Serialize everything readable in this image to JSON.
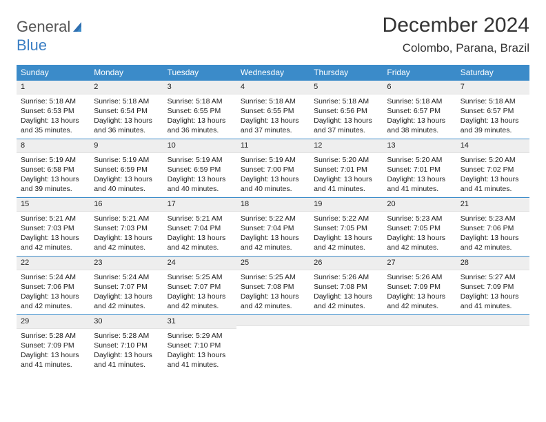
{
  "logo": {
    "top": "General",
    "bottom": "Blue"
  },
  "title": "December 2024",
  "location": "Colombo, Parana, Brazil",
  "weekdays": [
    "Sunday",
    "Monday",
    "Tuesday",
    "Wednesday",
    "Thursday",
    "Friday",
    "Saturday"
  ],
  "colors": {
    "header_bg": "#3b8bc9",
    "header_text": "#ffffff",
    "rule": "#3b8bc9",
    "daynum_bg": "#eeeeee",
    "logo_gray": "#555555",
    "logo_blue": "#3b7fc4",
    "text": "#222222",
    "background": "#ffffff"
  },
  "typography": {
    "title_fontsize": 30,
    "location_fontsize": 17,
    "weekday_fontsize": 12,
    "daynum_fontsize": 11,
    "body_fontsize": 10.5
  },
  "type": "calendar-table",
  "weeks": [
    [
      {
        "n": "1",
        "sunrise": "5:18 AM",
        "sunset": "6:53 PM",
        "daylight": "13 hours and 35 minutes."
      },
      {
        "n": "2",
        "sunrise": "5:18 AM",
        "sunset": "6:54 PM",
        "daylight": "13 hours and 36 minutes."
      },
      {
        "n": "3",
        "sunrise": "5:18 AM",
        "sunset": "6:55 PM",
        "daylight": "13 hours and 36 minutes."
      },
      {
        "n": "4",
        "sunrise": "5:18 AM",
        "sunset": "6:55 PM",
        "daylight": "13 hours and 37 minutes."
      },
      {
        "n": "5",
        "sunrise": "5:18 AM",
        "sunset": "6:56 PM",
        "daylight": "13 hours and 37 minutes."
      },
      {
        "n": "6",
        "sunrise": "5:18 AM",
        "sunset": "6:57 PM",
        "daylight": "13 hours and 38 minutes."
      },
      {
        "n": "7",
        "sunrise": "5:18 AM",
        "sunset": "6:57 PM",
        "daylight": "13 hours and 39 minutes."
      }
    ],
    [
      {
        "n": "8",
        "sunrise": "5:19 AM",
        "sunset": "6:58 PM",
        "daylight": "13 hours and 39 minutes."
      },
      {
        "n": "9",
        "sunrise": "5:19 AM",
        "sunset": "6:59 PM",
        "daylight": "13 hours and 40 minutes."
      },
      {
        "n": "10",
        "sunrise": "5:19 AM",
        "sunset": "6:59 PM",
        "daylight": "13 hours and 40 minutes."
      },
      {
        "n": "11",
        "sunrise": "5:19 AM",
        "sunset": "7:00 PM",
        "daylight": "13 hours and 40 minutes."
      },
      {
        "n": "12",
        "sunrise": "5:20 AM",
        "sunset": "7:01 PM",
        "daylight": "13 hours and 41 minutes."
      },
      {
        "n": "13",
        "sunrise": "5:20 AM",
        "sunset": "7:01 PM",
        "daylight": "13 hours and 41 minutes."
      },
      {
        "n": "14",
        "sunrise": "5:20 AM",
        "sunset": "7:02 PM",
        "daylight": "13 hours and 41 minutes."
      }
    ],
    [
      {
        "n": "15",
        "sunrise": "5:21 AM",
        "sunset": "7:03 PM",
        "daylight": "13 hours and 42 minutes."
      },
      {
        "n": "16",
        "sunrise": "5:21 AM",
        "sunset": "7:03 PM",
        "daylight": "13 hours and 42 minutes."
      },
      {
        "n": "17",
        "sunrise": "5:21 AM",
        "sunset": "7:04 PM",
        "daylight": "13 hours and 42 minutes."
      },
      {
        "n": "18",
        "sunrise": "5:22 AM",
        "sunset": "7:04 PM",
        "daylight": "13 hours and 42 minutes."
      },
      {
        "n": "19",
        "sunrise": "5:22 AM",
        "sunset": "7:05 PM",
        "daylight": "13 hours and 42 minutes."
      },
      {
        "n": "20",
        "sunrise": "5:23 AM",
        "sunset": "7:05 PM",
        "daylight": "13 hours and 42 minutes."
      },
      {
        "n": "21",
        "sunrise": "5:23 AM",
        "sunset": "7:06 PM",
        "daylight": "13 hours and 42 minutes."
      }
    ],
    [
      {
        "n": "22",
        "sunrise": "5:24 AM",
        "sunset": "7:06 PM",
        "daylight": "13 hours and 42 minutes."
      },
      {
        "n": "23",
        "sunrise": "5:24 AM",
        "sunset": "7:07 PM",
        "daylight": "13 hours and 42 minutes."
      },
      {
        "n": "24",
        "sunrise": "5:25 AM",
        "sunset": "7:07 PM",
        "daylight": "13 hours and 42 minutes."
      },
      {
        "n": "25",
        "sunrise": "5:25 AM",
        "sunset": "7:08 PM",
        "daylight": "13 hours and 42 minutes."
      },
      {
        "n": "26",
        "sunrise": "5:26 AM",
        "sunset": "7:08 PM",
        "daylight": "13 hours and 42 minutes."
      },
      {
        "n": "27",
        "sunrise": "5:26 AM",
        "sunset": "7:09 PM",
        "daylight": "13 hours and 42 minutes."
      },
      {
        "n": "28",
        "sunrise": "5:27 AM",
        "sunset": "7:09 PM",
        "daylight": "13 hours and 41 minutes."
      }
    ],
    [
      {
        "n": "29",
        "sunrise": "5:28 AM",
        "sunset": "7:09 PM",
        "daylight": "13 hours and 41 minutes."
      },
      {
        "n": "30",
        "sunrise": "5:28 AM",
        "sunset": "7:10 PM",
        "daylight": "13 hours and 41 minutes."
      },
      {
        "n": "31",
        "sunrise": "5:29 AM",
        "sunset": "7:10 PM",
        "daylight": "13 hours and 41 minutes."
      },
      null,
      null,
      null,
      null
    ]
  ],
  "labels": {
    "sunrise_prefix": "Sunrise: ",
    "sunset_prefix": "Sunset: ",
    "daylight_prefix": "Daylight: "
  }
}
